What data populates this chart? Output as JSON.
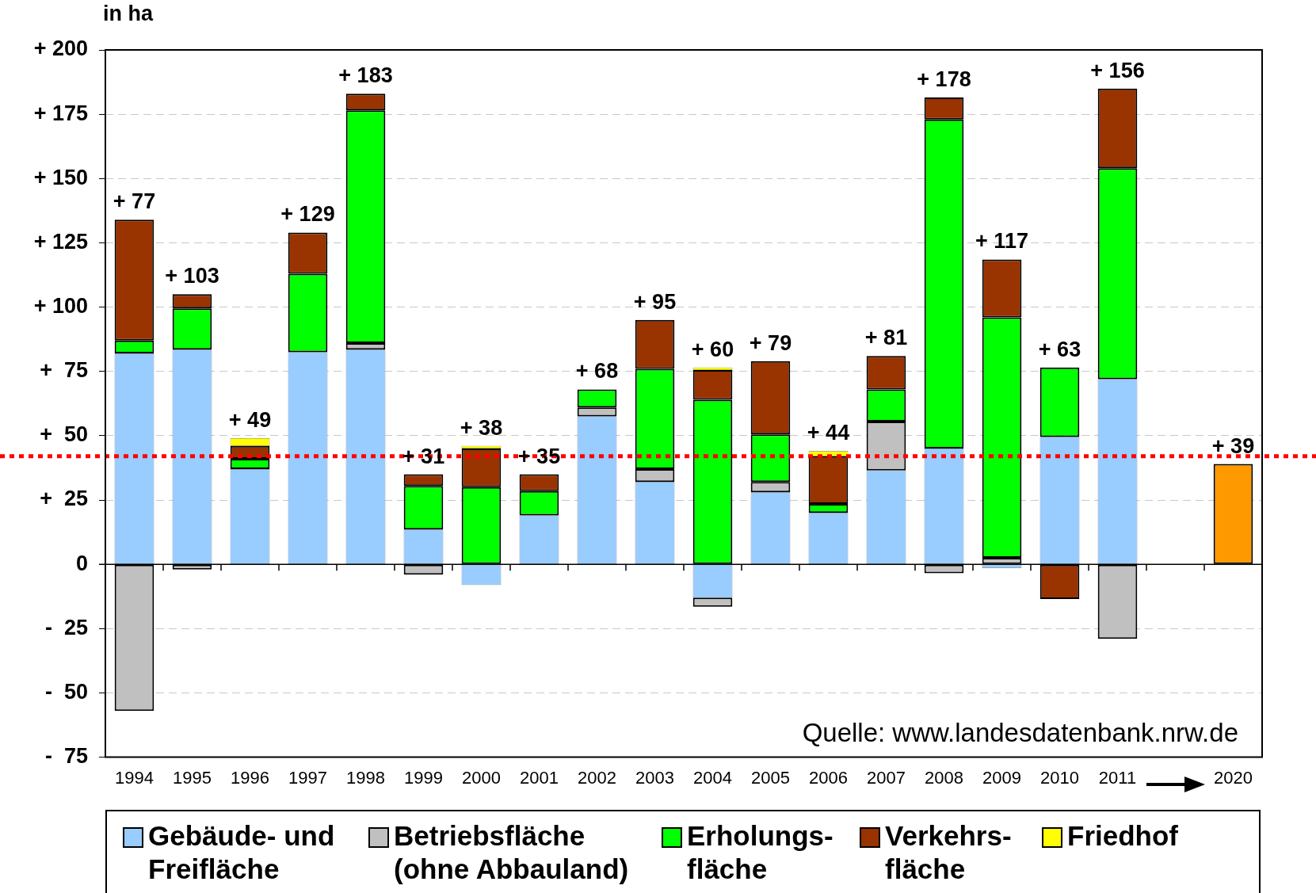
{
  "chart_data": {
    "type": "bar",
    "stacked": true,
    "ylabel": "in ha",
    "categories": [
      "1994",
      "1995",
      "1996",
      "1997",
      "1998",
      "1999",
      "2000",
      "2001",
      "2002",
      "2003",
      "2004",
      "2005",
      "2006",
      "2007",
      "2008",
      "2009",
      "2010",
      "2011",
      null,
      "2020"
    ],
    "series": [
      {
        "name": "Gebäude- und Freifläche",
        "color": "#99ccff",
        "values": [
          82,
          83.5,
          37,
          82.5,
          83.5,
          13.5,
          -8,
          19,
          57.5,
          32,
          -13,
          28,
          20,
          36.5,
          45,
          -1.5,
          49.5,
          72,
          null,
          null
        ]
      },
      {
        "name": "Betriebsfläche (ohne Abbauland)",
        "color": "#c0c0c0",
        "values": [
          -57,
          -2,
          null,
          null,
          2.5,
          -4,
          null,
          null,
          3.5,
          5,
          -3.5,
          4,
          null,
          19,
          -3.5,
          2.5,
          null,
          -29,
          null,
          null
        ]
      },
      {
        "name": "Erholungs- fläche",
        "color": "#00ff00",
        "values": [
          5,
          16,
          4,
          30.5,
          90.5,
          17,
          30,
          9.5,
          7,
          39,
          64,
          18.5,
          3.5,
          12.5,
          128,
          93.5,
          27,
          82,
          null,
          null
        ]
      },
      {
        "name": "Verkehrs- fläche",
        "color": "#993300",
        "values": [
          47,
          5.5,
          5,
          16,
          6.5,
          4.5,
          15,
          6.5,
          null,
          19,
          11.5,
          28.5,
          18.5,
          13,
          8.5,
          22.5,
          -13.5,
          31,
          null,
          null
        ]
      },
      {
        "name": "Friedhof",
        "color": "#ffff00",
        "values": [
          null,
          null,
          3,
          null,
          null,
          null,
          1,
          null,
          null,
          null,
          1,
          null,
          2,
          null,
          null,
          null,
          null,
          null,
          null,
          null
        ]
      },
      {
        "color": "#ff9900",
        "values": [
          null,
          null,
          null,
          null,
          null,
          null,
          null,
          null,
          null,
          null,
          null,
          null,
          null,
          null,
          null,
          null,
          null,
          null,
          null,
          39
        ]
      }
    ],
    "totals": [
      "+ 77",
      "+ 103",
      "+ 49",
      "+ 129",
      "+ 183",
      "+ 31",
      "+ 38",
      "+ 35",
      "+ 68",
      "+ 95",
      "+ 60",
      "+ 79",
      "+ 44",
      "+ 81",
      "+ 178",
      "+ 117",
      "+ 63",
      "+ 156",
      null,
      "+ 39"
    ],
    "ylim": [
      -75,
      200
    ],
    "yticks": [
      {
        "value": -75,
        "label": "-  75"
      },
      {
        "value": -50,
        "label": "-  50"
      },
      {
        "value": -25,
        "label": "-  25"
      },
      {
        "value": 0,
        "label": "0"
      },
      {
        "value": 25,
        "label": "+  25"
      },
      {
        "value": 50,
        "label": "+  50"
      },
      {
        "value": 75,
        "label": "+  75"
      },
      {
        "value": 100,
        "label": "+ 100"
      },
      {
        "value": 125,
        "label": "+ 125"
      },
      {
        "value": 150,
        "label": "+ 150"
      },
      {
        "value": 175,
        "label": "+ 175"
      },
      {
        "value": 200,
        "label": "+ 200"
      }
    ],
    "grid": "y",
    "legend": "bottom",
    "ref_lines": [
      {
        "axis": "y",
        "value": 42,
        "color": "#ff0000",
        "line_style": "dotted"
      }
    ],
    "annotations": [
      "Quelle: www.landesdatenbank.nrw.de"
    ]
  }
}
